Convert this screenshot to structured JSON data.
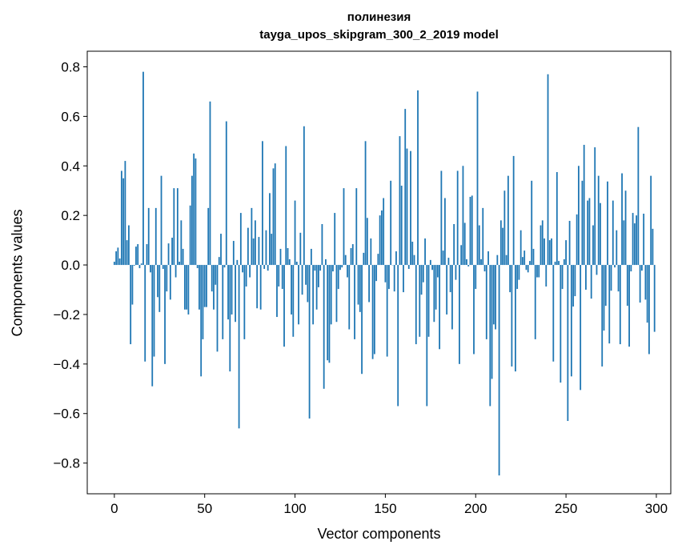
{
  "chart_data": {
    "type": "bar",
    "title": "полинезия",
    "subtitle": "tayga_upos_skipgram_300_2_2019 model",
    "xlabel": "Vector components",
    "ylabel": "Components values",
    "xlim": [
      -15,
      308
    ],
    "ylim": [
      -0.924,
      0.863
    ],
    "xticks": [
      0,
      50,
      100,
      150,
      200,
      250,
      300
    ],
    "xtick_labels": [
      "0",
      "50",
      "100",
      "150",
      "200",
      "250",
      "300"
    ],
    "yticks": [
      -0.8,
      -0.6,
      -0.4,
      -0.2,
      0.0,
      0.2,
      0.4,
      0.6,
      0.8
    ],
    "ytick_labels": [
      "−0.8",
      "−0.6",
      "−0.4",
      "−0.2",
      "0.0",
      "0.2",
      "0.4",
      "0.6",
      "0.8"
    ],
    "grid": false,
    "bar_color": "#1f77b4",
    "x_start": 0,
    "values": [
      0.013,
      0.055,
      0.07,
      0.026,
      0.38,
      0.35,
      0.42,
      0.1,
      0.16,
      -0.32,
      -0.16,
      -0.003,
      0.074,
      0.084,
      -0.013,
      0.006,
      0.78,
      -0.39,
      0.084,
      0.23,
      -0.03,
      -0.49,
      -0.37,
      0.23,
      -0.13,
      -0.19,
      0.36,
      -0.016,
      -0.4,
      -0.107,
      0.087,
      -0.14,
      0.11,
      0.31,
      -0.05,
      0.31,
      0.013,
      0.18,
      0.065,
      -0.18,
      -0.18,
      -0.2,
      0.24,
      0.36,
      0.45,
      0.43,
      -0.013,
      -0.18,
      -0.45,
      -0.3,
      -0.17,
      -0.17,
      0.23,
      0.66,
      -0.107,
      -0.18,
      -0.08,
      -0.35,
      0.032,
      0.126,
      -0.3,
      -0.01,
      0.58,
      -0.22,
      -0.43,
      -0.2,
      0.097,
      -0.23,
      0.02,
      -0.66,
      0.21,
      -0.03,
      -0.3,
      -0.087,
      0.15,
      -0.05,
      0.23,
      0.107,
      0.18,
      -0.175,
      0.113,
      -0.18,
      0.5,
      -0.016,
      0.14,
      -0.023,
      0.29,
      0.126,
      0.39,
      0.41,
      -0.21,
      -0.087,
      0.065,
      -0.097,
      -0.33,
      0.48,
      0.068,
      0.023,
      -0.2,
      -0.29,
      0.26,
      0.013,
      -0.24,
      0.13,
      -0.12,
      0.56,
      -0.08,
      -0.15,
      -0.62,
      0.065,
      -0.24,
      -0.023,
      -0.18,
      -0.09,
      -0.023,
      0.165,
      -0.5,
      0.023,
      -0.385,
      -0.395,
      -0.24,
      -0.026,
      0.21,
      -0.23,
      -0.097,
      -0.02,
      -0.01,
      0.31,
      0.04,
      -0.05,
      -0.26,
      0.068,
      0.084,
      -0.3,
      0.31,
      -0.16,
      -0.19,
      -0.44,
      0.049,
      0.5,
      0.19,
      -0.15,
      0.107,
      -0.38,
      -0.36,
      -0.065,
      0.045,
      0.2,
      0.22,
      0.27,
      -0.07,
      -0.37,
      -0.097,
      0.34,
      0.0,
      -0.107,
      0.055,
      -0.57,
      0.52,
      0.32,
      -0.11,
      0.63,
      0.47,
      -0.016,
      0.46,
      0.094,
      0.04,
      -0.32,
      0.705,
      -0.29,
      -0.12,
      -0.07,
      0.107,
      -0.57,
      -0.29,
      0.02,
      -0.02,
      -0.23,
      -0.18,
      -0.05,
      -0.34,
      0.38,
      0.058,
      0.27,
      -0.2,
      0.029,
      -0.11,
      -0.26,
      0.165,
      -0.06,
      0.38,
      -0.4,
      0.08,
      0.4,
      0.17,
      0.023,
      -0.006,
      0.275,
      0.28,
      -0.36,
      -0.097,
      0.7,
      0.16,
      0.023,
      0.23,
      -0.026,
      -0.3,
      0.055,
      -0.57,
      -0.46,
      -0.24,
      -0.26,
      0.04,
      -0.85,
      0.18,
      0.15,
      0.3,
      0.04,
      0.36,
      -0.11,
      -0.41,
      0.44,
      -0.43,
      -0.097,
      -0.06,
      0.14,
      0.032,
      0.058,
      -0.02,
      -0.03,
      0.016,
      0.34,
      0.065,
      -0.3,
      -0.05,
      -0.05,
      0.16,
      0.18,
      0.107,
      -0.087,
      0.77,
      0.1,
      0.107,
      -0.39,
      0.013,
      0.375,
      0.016,
      -0.475,
      -0.097,
      0.023,
      0.1,
      -0.63,
      0.178,
      -0.45,
      -0.168,
      -0.126,
      0.204,
      0.4,
      -0.505,
      0.34,
      0.485,
      -0.1,
      0.26,
      0.27,
      -0.136,
      0.16,
      0.475,
      -0.04,
      0.36,
      0.25,
      -0.41,
      -0.265,
      -0.165,
      0.337,
      -0.317,
      -0.104,
      0.26,
      -0.01,
      0.14,
      -0.107,
      -0.32,
      0.37,
      0.18,
      0.3,
      -0.165,
      -0.33,
      -0.026,
      0.21,
      0.168,
      0.2,
      0.557,
      -0.152,
      -0.023,
      0.207,
      -0.14,
      -0.233,
      -0.36,
      0.36,
      0.146,
      -0.27
    ]
  }
}
